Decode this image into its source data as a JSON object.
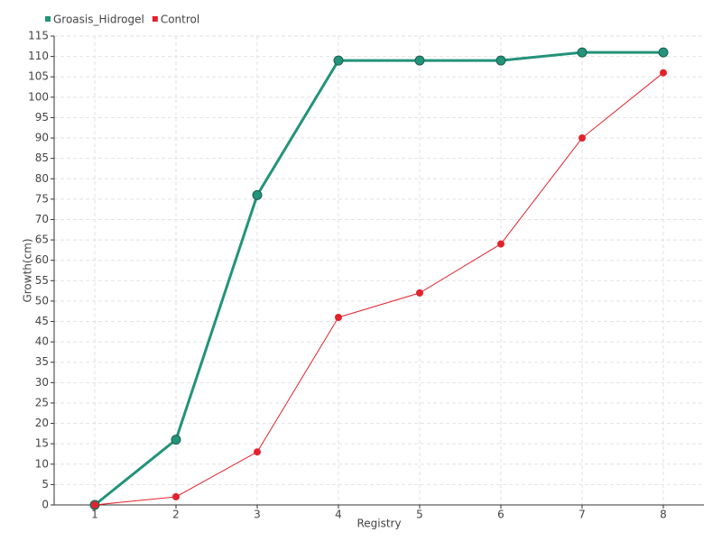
{
  "chart_data": {
    "type": "line",
    "x": [
      1,
      2,
      3,
      4,
      5,
      6,
      7,
      8
    ],
    "xlabel": "Registry",
    "ylabel": "Growth(cm)",
    "series": [
      {
        "name": "Groasis_Hidrogel",
        "color": "#23937a",
        "values": [
          0,
          16,
          76,
          109,
          109,
          109,
          111,
          111
        ]
      },
      {
        "name": "Control",
        "color": "#e3222c",
        "values": [
          0,
          2,
          13,
          46,
          52,
          64,
          90,
          106
        ]
      }
    ],
    "xlim": [
      0.5,
      8.5
    ],
    "xticks": [
      1,
      2,
      3,
      4,
      5,
      6,
      7,
      8
    ],
    "ylim": [
      0,
      115
    ],
    "yticks": [
      0,
      5,
      10,
      15,
      20,
      25,
      30,
      35,
      40,
      45,
      50,
      55,
      60,
      65,
      70,
      75,
      80,
      85,
      90,
      95,
      100,
      105,
      110,
      115
    ],
    "grid": true,
    "legend": "top-left"
  }
}
